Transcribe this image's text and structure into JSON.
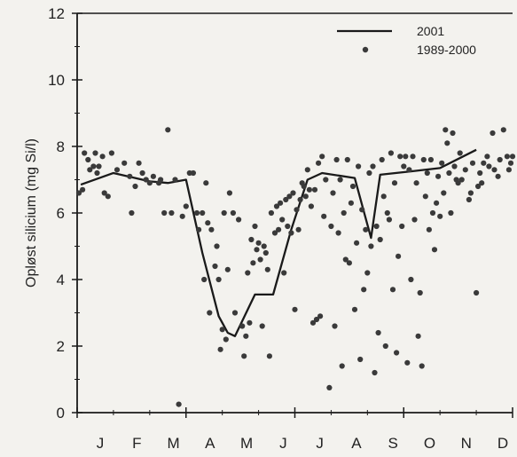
{
  "chart_data": {
    "type": "line",
    "title": "",
    "xlabel": "",
    "ylabel": "Opløst silicium (mg Si/l)",
    "ylim": [
      0,
      12
    ],
    "yticks": [
      "0",
      "2",
      "4",
      "6",
      "8",
      "10",
      "12"
    ],
    "xlim": [
      0,
      12
    ],
    "month_labels": [
      "J",
      "F",
      "M",
      "A",
      "M",
      "J",
      "J",
      "A",
      "S",
      "O",
      "N",
      "D"
    ],
    "grid": false,
    "legend_position": "top-right",
    "series": [
      {
        "name": "2001",
        "kind": "line",
        "color": "#1a1a1a",
        "points": [
          [
            0.1,
            6.85
          ],
          [
            1.0,
            7.2
          ],
          [
            2.0,
            6.95
          ],
          [
            2.5,
            6.9
          ],
          [
            3.0,
            7.0
          ],
          [
            3.45,
            4.8
          ],
          [
            3.9,
            2.9
          ],
          [
            4.15,
            2.4
          ],
          [
            4.35,
            2.3
          ],
          [
            4.9,
            3.55
          ],
          [
            5.4,
            3.55
          ],
          [
            5.9,
            5.5
          ],
          [
            6.35,
            7.0
          ],
          [
            6.75,
            7.2
          ],
          [
            7.65,
            7.05
          ],
          [
            8.1,
            5.25
          ],
          [
            8.35,
            7.15
          ],
          [
            9.2,
            7.25
          ],
          [
            10.0,
            7.35
          ],
          [
            11.0,
            7.9
          ]
        ]
      },
      {
        "name": "1989-2000",
        "kind": "scatter",
        "color": "#3a3a3a",
        "points": [
          [
            0.05,
            6.6
          ],
          [
            0.15,
            6.7
          ],
          [
            0.2,
            7.8
          ],
          [
            0.3,
            7.6
          ],
          [
            0.35,
            7.3
          ],
          [
            0.45,
            7.4
          ],
          [
            0.5,
            7.8
          ],
          [
            0.55,
            7.2
          ],
          [
            0.6,
            7.4
          ],
          [
            0.7,
            7.7
          ],
          [
            0.75,
            6.6
          ],
          [
            0.85,
            6.5
          ],
          [
            0.95,
            7.8
          ],
          [
            1.1,
            7.3
          ],
          [
            1.3,
            7.5
          ],
          [
            1.45,
            7.1
          ],
          [
            1.5,
            6.0
          ],
          [
            1.6,
            6.8
          ],
          [
            1.7,
            7.5
          ],
          [
            1.8,
            7.2
          ],
          [
            1.9,
            7.0
          ],
          [
            2.0,
            6.9
          ],
          [
            2.1,
            7.1
          ],
          [
            2.25,
            6.9
          ],
          [
            2.3,
            7.0
          ],
          [
            2.4,
            6.0
          ],
          [
            2.5,
            8.5
          ],
          [
            2.6,
            6.0
          ],
          [
            2.7,
            7.0
          ],
          [
            2.8,
            0.25
          ],
          [
            2.9,
            5.9
          ],
          [
            3.0,
            6.2
          ],
          [
            3.1,
            7.2
          ],
          [
            3.2,
            7.2
          ],
          [
            3.3,
            6.0
          ],
          [
            3.35,
            5.5
          ],
          [
            3.45,
            6.0
          ],
          [
            3.5,
            4.0
          ],
          [
            3.55,
            6.9
          ],
          [
            3.6,
            5.7
          ],
          [
            3.65,
            3.0
          ],
          [
            3.7,
            5.5
          ],
          [
            3.8,
            4.4
          ],
          [
            3.85,
            5.0
          ],
          [
            3.9,
            4.0
          ],
          [
            3.95,
            1.9
          ],
          [
            4.0,
            2.5
          ],
          [
            4.05,
            6.0
          ],
          [
            4.1,
            2.2
          ],
          [
            4.15,
            4.3
          ],
          [
            4.2,
            6.6
          ],
          [
            4.3,
            6.0
          ],
          [
            4.35,
            3.0
          ],
          [
            4.45,
            5.8
          ],
          [
            4.55,
            2.6
          ],
          [
            4.6,
            1.7
          ],
          [
            4.65,
            2.3
          ],
          [
            4.7,
            4.2
          ],
          [
            4.75,
            2.7
          ],
          [
            4.8,
            5.2
          ],
          [
            4.85,
            4.5
          ],
          [
            4.9,
            5.6
          ],
          [
            4.95,
            4.9
          ],
          [
            5.0,
            5.1
          ],
          [
            5.05,
            4.6
          ],
          [
            5.1,
            2.6
          ],
          [
            5.15,
            5.0
          ],
          [
            5.2,
            4.8
          ],
          [
            5.25,
            4.3
          ],
          [
            5.3,
            1.7
          ],
          [
            5.35,
            6.0
          ],
          [
            5.45,
            5.4
          ],
          [
            5.5,
            6.2
          ],
          [
            5.55,
            5.5
          ],
          [
            5.6,
            6.3
          ],
          [
            5.65,
            5.8
          ],
          [
            5.7,
            4.2
          ],
          [
            5.75,
            6.4
          ],
          [
            5.8,
            5.6
          ],
          [
            5.85,
            6.5
          ],
          [
            5.9,
            5.4
          ],
          [
            5.95,
            6.6
          ],
          [
            6.0,
            3.1
          ],
          [
            6.05,
            6.1
          ],
          [
            6.1,
            5.5
          ],
          [
            6.15,
            6.4
          ],
          [
            6.2,
            6.9
          ],
          [
            6.25,
            6.8
          ],
          [
            6.3,
            6.5
          ],
          [
            6.35,
            7.3
          ],
          [
            6.4,
            6.7
          ],
          [
            6.45,
            6.2
          ],
          [
            6.5,
            2.7
          ],
          [
            6.55,
            6.7
          ],
          [
            6.6,
            2.8
          ],
          [
            6.65,
            7.5
          ],
          [
            6.7,
            2.9
          ],
          [
            6.75,
            7.7
          ],
          [
            6.8,
            5.9
          ],
          [
            6.85,
            7.0
          ],
          [
            6.95,
            0.75
          ],
          [
            7.0,
            5.6
          ],
          [
            7.05,
            6.6
          ],
          [
            7.1,
            2.6
          ],
          [
            7.15,
            7.6
          ],
          [
            7.2,
            5.4
          ],
          [
            7.25,
            7.0
          ],
          [
            7.3,
            1.4
          ],
          [
            7.35,
            6.0
          ],
          [
            7.4,
            4.6
          ],
          [
            7.45,
            7.6
          ],
          [
            7.5,
            4.5
          ],
          [
            7.55,
            6.3
          ],
          [
            7.6,
            6.8
          ],
          [
            7.65,
            3.1
          ],
          [
            7.7,
            5.1
          ],
          [
            7.75,
            7.4
          ],
          [
            7.8,
            1.6
          ],
          [
            7.85,
            6.1
          ],
          [
            7.9,
            3.7
          ],
          [
            7.95,
            5.5
          ],
          [
            8.0,
            4.2
          ],
          [
            8.05,
            7.2
          ],
          [
            8.1,
            5.0
          ],
          [
            8.15,
            7.4
          ],
          [
            8.2,
            1.2
          ],
          [
            8.25,
            5.6
          ],
          [
            8.3,
            2.4
          ],
          [
            8.35,
            5.2
          ],
          [
            8.4,
            7.6
          ],
          [
            8.45,
            6.5
          ],
          [
            8.5,
            2.0
          ],
          [
            8.55,
            6.0
          ],
          [
            8.6,
            5.8
          ],
          [
            8.65,
            7.8
          ],
          [
            8.7,
            3.7
          ],
          [
            8.75,
            6.9
          ],
          [
            8.8,
            1.8
          ],
          [
            8.85,
            4.7
          ],
          [
            8.9,
            7.7
          ],
          [
            8.95,
            5.6
          ],
          [
            9.0,
            7.4
          ],
          [
            9.05,
            7.7
          ],
          [
            9.1,
            1.5
          ],
          [
            9.15,
            7.3
          ],
          [
            9.2,
            4.0
          ],
          [
            9.25,
            7.7
          ],
          [
            9.3,
            5.8
          ],
          [
            9.35,
            6.9
          ],
          [
            9.4,
            2.3
          ],
          [
            9.45,
            3.6
          ],
          [
            9.5,
            1.4
          ],
          [
            9.55,
            7.6
          ],
          [
            9.6,
            6.5
          ],
          [
            9.65,
            7.2
          ],
          [
            9.7,
            5.5
          ],
          [
            9.75,
            7.6
          ],
          [
            9.8,
            6.0
          ],
          [
            9.85,
            4.9
          ],
          [
            9.9,
            6.3
          ],
          [
            9.95,
            7.1
          ],
          [
            10.0,
            5.9
          ],
          [
            10.05,
            7.5
          ],
          [
            10.1,
            6.6
          ],
          [
            10.15,
            8.5
          ],
          [
            10.2,
            8.1
          ],
          [
            10.25,
            7.2
          ],
          [
            10.3,
            6.0
          ],
          [
            10.35,
            8.4
          ],
          [
            10.4,
            7.4
          ],
          [
            10.45,
            7.0
          ],
          [
            10.5,
            6.9
          ],
          [
            10.55,
            7.8
          ],
          [
            10.6,
            7.0
          ],
          [
            10.7,
            7.3
          ],
          [
            10.8,
            6.4
          ],
          [
            10.85,
            6.6
          ],
          [
            10.9,
            7.5
          ],
          [
            11.0,
            3.6
          ],
          [
            11.05,
            6.8
          ],
          [
            11.1,
            7.2
          ],
          [
            11.15,
            6.9
          ],
          [
            11.2,
            7.5
          ],
          [
            11.3,
            7.7
          ],
          [
            11.35,
            7.4
          ],
          [
            11.45,
            8.4
          ],
          [
            11.5,
            7.3
          ],
          [
            11.6,
            7.1
          ],
          [
            11.65,
            7.6
          ],
          [
            11.75,
            8.5
          ],
          [
            11.85,
            7.7
          ],
          [
            11.9,
            7.3
          ],
          [
            11.95,
            7.5
          ],
          [
            12.0,
            7.7
          ]
        ]
      }
    ]
  }
}
